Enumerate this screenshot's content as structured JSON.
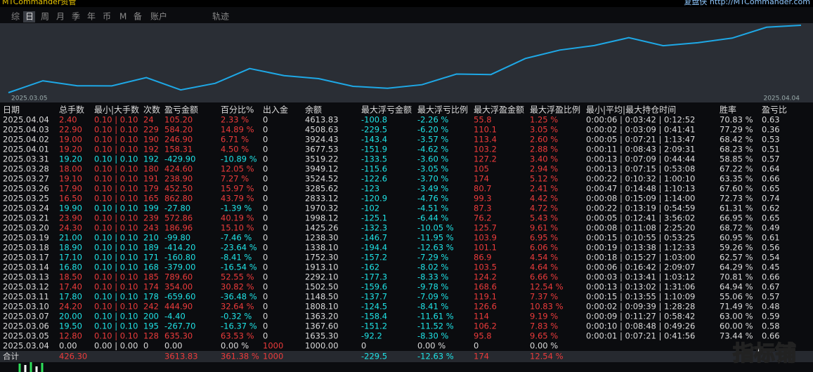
{
  "header": {
    "app": "MTCommander资管",
    "right": "复盘侠 http://MTCommander.com"
  },
  "tabs": [
    "综",
    "日",
    "周",
    "月",
    "季",
    "年",
    "币",
    "M",
    "备",
    "账户",
    "轨迹"
  ],
  "chart": {
    "start_label": "2025.03.05",
    "end_label": "2025.04.04"
  },
  "table": {
    "columns": [
      "日期",
      "总手数",
      "最小|大手数",
      "次数",
      "盈亏金额",
      "百分比%",
      "出入金",
      "余额",
      "最大浮亏金额",
      "最大浮亏比例",
      "最大浮盈金额",
      "最大浮盈比例",
      "最小|平均|最大持仓时间",
      "胜率",
      "盈亏比"
    ],
    "rows": [
      [
        "2025.04.04",
        "2.40",
        "0.10 | 0.10",
        "24",
        "105.20",
        "2.33 %",
        "0",
        "4613.83",
        "-100.8",
        "-2.26 %",
        "55.8",
        "1.25 %",
        "0:00:06 | 0:03:42 | 0:12:52",
        "70.83 %",
        "0.63"
      ],
      [
        "2025.04.03",
        "22.90",
        "0.10 | 0.10",
        "229",
        "584.20",
        "14.89 %",
        "0",
        "4508.63",
        "-229.5",
        "-6.20 %",
        "110.1",
        "3.05 %",
        "0:00:02 | 0:03:09 | 0:41:41",
        "77.29 %",
        "0.36"
      ],
      [
        "2025.04.02",
        "19.00",
        "0.10 | 0.10",
        "190",
        "246.90",
        "6.71 %",
        "0",
        "3924.43",
        "-143.4",
        "-3.57 %",
        "113.4",
        "2.60 %",
        "0:00:05 | 0:07:21 | 1:13:47",
        "68.42 %",
        "0.53"
      ],
      [
        "2025.04.01",
        "19.20",
        "0.10 | 0.10",
        "192",
        "158.31",
        "4.50 %",
        "0",
        "3677.53",
        "-151.9",
        "-4.62 %",
        "103.2",
        "2.88 %",
        "0:00:11 | 0:08:43 | 2:09:31",
        "68.23 %",
        "0.51"
      ],
      [
        "2025.03.31",
        "19.20",
        "0.10 | 0.10",
        "192",
        "-429.90",
        "-10.89 %",
        "0",
        "3519.22",
        "-133.5",
        "-3.60 %",
        "127.2",
        "3.40 %",
        "0:00:13 | 0:07:09 | 0:44:44",
        "58.85 %",
        "0.57"
      ],
      [
        "2025.03.28",
        "18.00",
        "0.10 | 0.10",
        "180",
        "424.60",
        "12.05 %",
        "0",
        "3949.12",
        "-115.6",
        "-3.05 %",
        "105",
        "2.94 %",
        "0:00:13 | 0:07:15 | 0:53:08",
        "67.22 %",
        "0.64"
      ],
      [
        "2025.03.27",
        "19.10",
        "0.10 | 0.10",
        "191",
        "238.90",
        "7.27 %",
        "0",
        "3524.52",
        "-122.6",
        "-3.70 %",
        "174",
        "5.12 %",
        "0:00:22 | 0:10:32 | 1:00:10",
        "63.35 %",
        "0.66"
      ],
      [
        "2025.03.26",
        "17.90",
        "0.10 | 0.10",
        "179",
        "452.50",
        "15.97 %",
        "0",
        "3285.62",
        "-123",
        "-3.49 %",
        "80.7",
        "2.41 %",
        "0:00:47 | 0:14:48 | 1:10:13",
        "67.60 %",
        "0.65"
      ],
      [
        "2025.03.25",
        "16.50",
        "0.10 | 0.10",
        "165",
        "862.80",
        "43.79 %",
        "0",
        "2833.12",
        "-120.9",
        "-4.76 %",
        "99.3",
        "4.42 %",
        "0:00:08 | 0:15:09 | 1:14:00",
        "72.73 %",
        "0.74"
      ],
      [
        "2025.03.24",
        "19.90",
        "0.10 | 0.10",
        "199",
        "-27.80",
        "-1.39 %",
        "0",
        "1970.32",
        "-102",
        "-4.51 %",
        "87.3",
        "4.72 %",
        "0:00:22 | 0:13:19 | 0:54:59",
        "61.31 %",
        "0.62"
      ],
      [
        "2025.03.21",
        "23.90",
        "0.10 | 0.10",
        "239",
        "572.86",
        "40.19 %",
        "0",
        "1998.12",
        "-125.1",
        "-6.44 %",
        "76.2",
        "5.43 %",
        "0:00:05 | 0:12:41 | 3:56:02",
        "66.95 %",
        "0.65"
      ],
      [
        "2025.03.20",
        "24.30",
        "0.10 | 0.10",
        "243",
        "186.96",
        "15.10 %",
        "0",
        "1425.26",
        "-132.3",
        "-10.05 %",
        "125.7",
        "9.61 %",
        "0:00:08 | 0:11:08 | 2:25:20",
        "68.72 %",
        "0.49"
      ],
      [
        "2025.03.19",
        "21.00",
        "0.10 | 0.10",
        "210",
        "-99.80",
        "-7.46 %",
        "0",
        "1238.30",
        "-146.7",
        "-11.95 %",
        "103.9",
        "6.95 %",
        "0:00:15 | 0:10:55 | 0:53:25",
        "60.95 %",
        "0.61"
      ],
      [
        "2025.03.18",
        "18.90",
        "0.10 | 0.10",
        "189",
        "-414.20",
        "-23.64 %",
        "0",
        "1338.10",
        "-194.4",
        "-12.63 %",
        "101.1",
        "6.06 %",
        "0:00:19 | 0:13:38 | 1:12:33",
        "59.26 %",
        "0.56"
      ],
      [
        "2025.03.17",
        "17.10",
        "0.10 | 0.10",
        "171",
        "-160.80",
        "-8.41 %",
        "0",
        "1752.30",
        "-157.2",
        "-7.29 %",
        "86.9",
        "4.54 %",
        "0:00:18 | 0:15:27 | 1:03:00",
        "62.57 %",
        "0.54"
      ],
      [
        "2025.03.14",
        "16.80",
        "0.10 | 0.10",
        "168",
        "-379.00",
        "-16.54 %",
        "0",
        "1913.10",
        "-162",
        "-8.02 %",
        "103.5",
        "4.64 %",
        "0:00:06 | 0:16:42 | 2:09:07",
        "64.29 %",
        "0.45"
      ],
      [
        "2025.03.13",
        "18.50",
        "0.10 | 0.10",
        "185",
        "789.60",
        "52.55 %",
        "0",
        "2292.10",
        "-177.3",
        "-8.33 %",
        "124.2",
        "6.66 %",
        "0:00:03 | 0:13:41 | 1:03:12",
        "70.81 %",
        "0.66"
      ],
      [
        "2025.03.12",
        "17.40",
        "0.10 | 0.10",
        "174",
        "354.00",
        "30.82 %",
        "0",
        "1502.50",
        "-159.6",
        "-9.78 %",
        "168.6",
        "12.54 %",
        "0:00:13 | 0:13:02 | 1:31:06",
        "64.94 %",
        "0.67"
      ],
      [
        "2025.03.11",
        "17.80",
        "0.10 | 0.10",
        "178",
        "-659.60",
        "-36.48 %",
        "0",
        "1148.50",
        "-137.7",
        "-7.09 %",
        "119.1",
        "7.37 %",
        "0:00:15 | 0:13:55 | 1:10:09",
        "55.06 %",
        "0.57"
      ],
      [
        "2025.03.10",
        "24.20",
        "0.10 | 0.10",
        "242",
        "444.90",
        "32.64 %",
        "0",
        "1808.10",
        "-124.5",
        "-8.41 %",
        "126.6",
        "10.83 %",
        "0:00:02 | 0:09:39 | 1:28:28",
        "71.49 %",
        "0.48"
      ],
      [
        "2025.03.07",
        "20.00",
        "0.10 | 0.10",
        "200",
        "-4.40",
        "-0.32 %",
        "0",
        "1363.20",
        "-158.4",
        "-11.61 %",
        "114",
        "9.19 %",
        "0:00:09 | 0:11:27 | 0:58:42",
        "63.00 %",
        "0.59"
      ],
      [
        "2025.03.06",
        "19.50",
        "0.10 | 0.10",
        "195",
        "-267.70",
        "-16.37 %",
        "0",
        "1367.60",
        "-151.2",
        "-11.52 %",
        "106.2",
        "7.83 %",
        "0:00:10 | 0:08:48 | 0:49:26",
        "60.00 %",
        "0.58"
      ],
      [
        "2025.03.05",
        "12.80",
        "0.10 | 0.10",
        "128",
        "635.30",
        "63.53 %",
        "0",
        "1635.30",
        "-92.2",
        "-8.30 %",
        "95.8",
        "9.65 %",
        "0:00:01 | 0:07:21 | 0:41:56",
        "73.44 %",
        "0.66"
      ],
      [
        "2025.03.04",
        "0.00",
        "0.00 | 0.00",
        "0",
        "0.00",
        "0.00 %",
        "1000",
        "1000.00",
        "0",
        "0.00 %",
        "0",
        "0.00 %"
      ]
    ],
    "total": [
      "合计",
      "426.30",
      null,
      null,
      "3613.83",
      "361.38 %",
      "1000",
      null,
      "-229.5",
      "-12.63 %",
      "174",
      "12.54 %"
    ]
  },
  "watermark": "指标铺"
}
